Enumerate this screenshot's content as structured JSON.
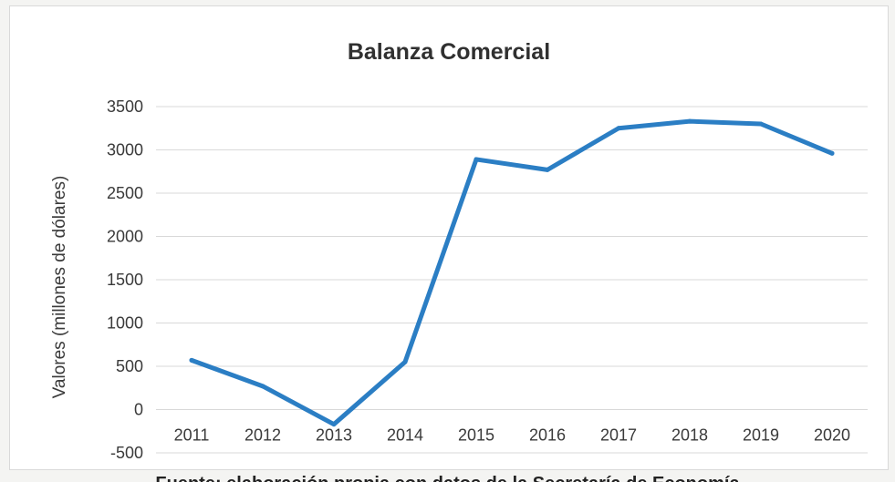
{
  "chart_data": {
    "type": "line",
    "title": "Balanza Comercial",
    "xlabel": "",
    "ylabel": "Valores (millones de dólares)",
    "categories": [
      "2011",
      "2012",
      "2013",
      "2014",
      "2015",
      "2016",
      "2017",
      "2018",
      "2019",
      "2020"
    ],
    "series": [
      {
        "values": [
          570,
          270,
          -170,
          550,
          2890,
          2770,
          3250,
          3330,
          3300,
          2960
        ]
      }
    ],
    "ylim": [
      -500,
      3500
    ],
    "yticks": [
      3500,
      3000,
      2500,
      2000,
      1500,
      1000,
      500,
      0,
      -500
    ],
    "grid": true,
    "legend": "none",
    "line_color": "#2b7ec4"
  },
  "caption": "Fuente: elaboración propia con datos de la Secretaría de Economía"
}
